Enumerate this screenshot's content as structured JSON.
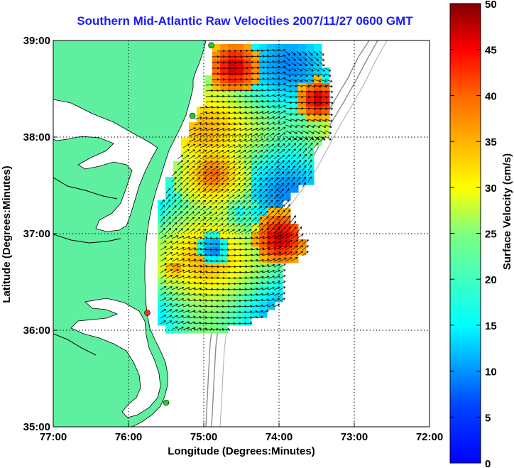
{
  "title": "Southern Mid-Atlantic Raw Velocities 2007/11/27 0600 GMT",
  "map": {
    "xlabel": "Longitude (Degrees:Minutes)",
    "ylabel": "Latitude (Degrees:Minutes)",
    "lon_range": [
      -77,
      -72
    ],
    "lat_range": [
      35,
      39
    ],
    "x_ticks": [
      "77:00",
      "76:00",
      "75:00",
      "74:00",
      "73:00",
      "72:00"
    ],
    "y_ticks": [
      "39:00",
      "38:00",
      "37:00",
      "36:00",
      "35:00"
    ],
    "land_color": "#5ef0a0",
    "water_color": "#ffffff",
    "grid": "dotted",
    "stations": [
      {
        "lon": -74.9,
        "lat": 38.95,
        "color": "#22cc33"
      },
      {
        "lon": -75.15,
        "lat": 38.22,
        "color": "#22cc33"
      },
      {
        "lon": -75.75,
        "lat": 36.18,
        "color": "#ff2a2a"
      },
      {
        "lon": -75.5,
        "lat": 35.25,
        "color": "#22cc33"
      }
    ]
  },
  "colorbar": {
    "label": "Surface Velocity (cm/s)",
    "min": 0,
    "max": 50,
    "ticks": [
      "50",
      "45",
      "40",
      "35",
      "30",
      "25",
      "20",
      "15",
      "10",
      "5",
      "0"
    ]
  }
}
